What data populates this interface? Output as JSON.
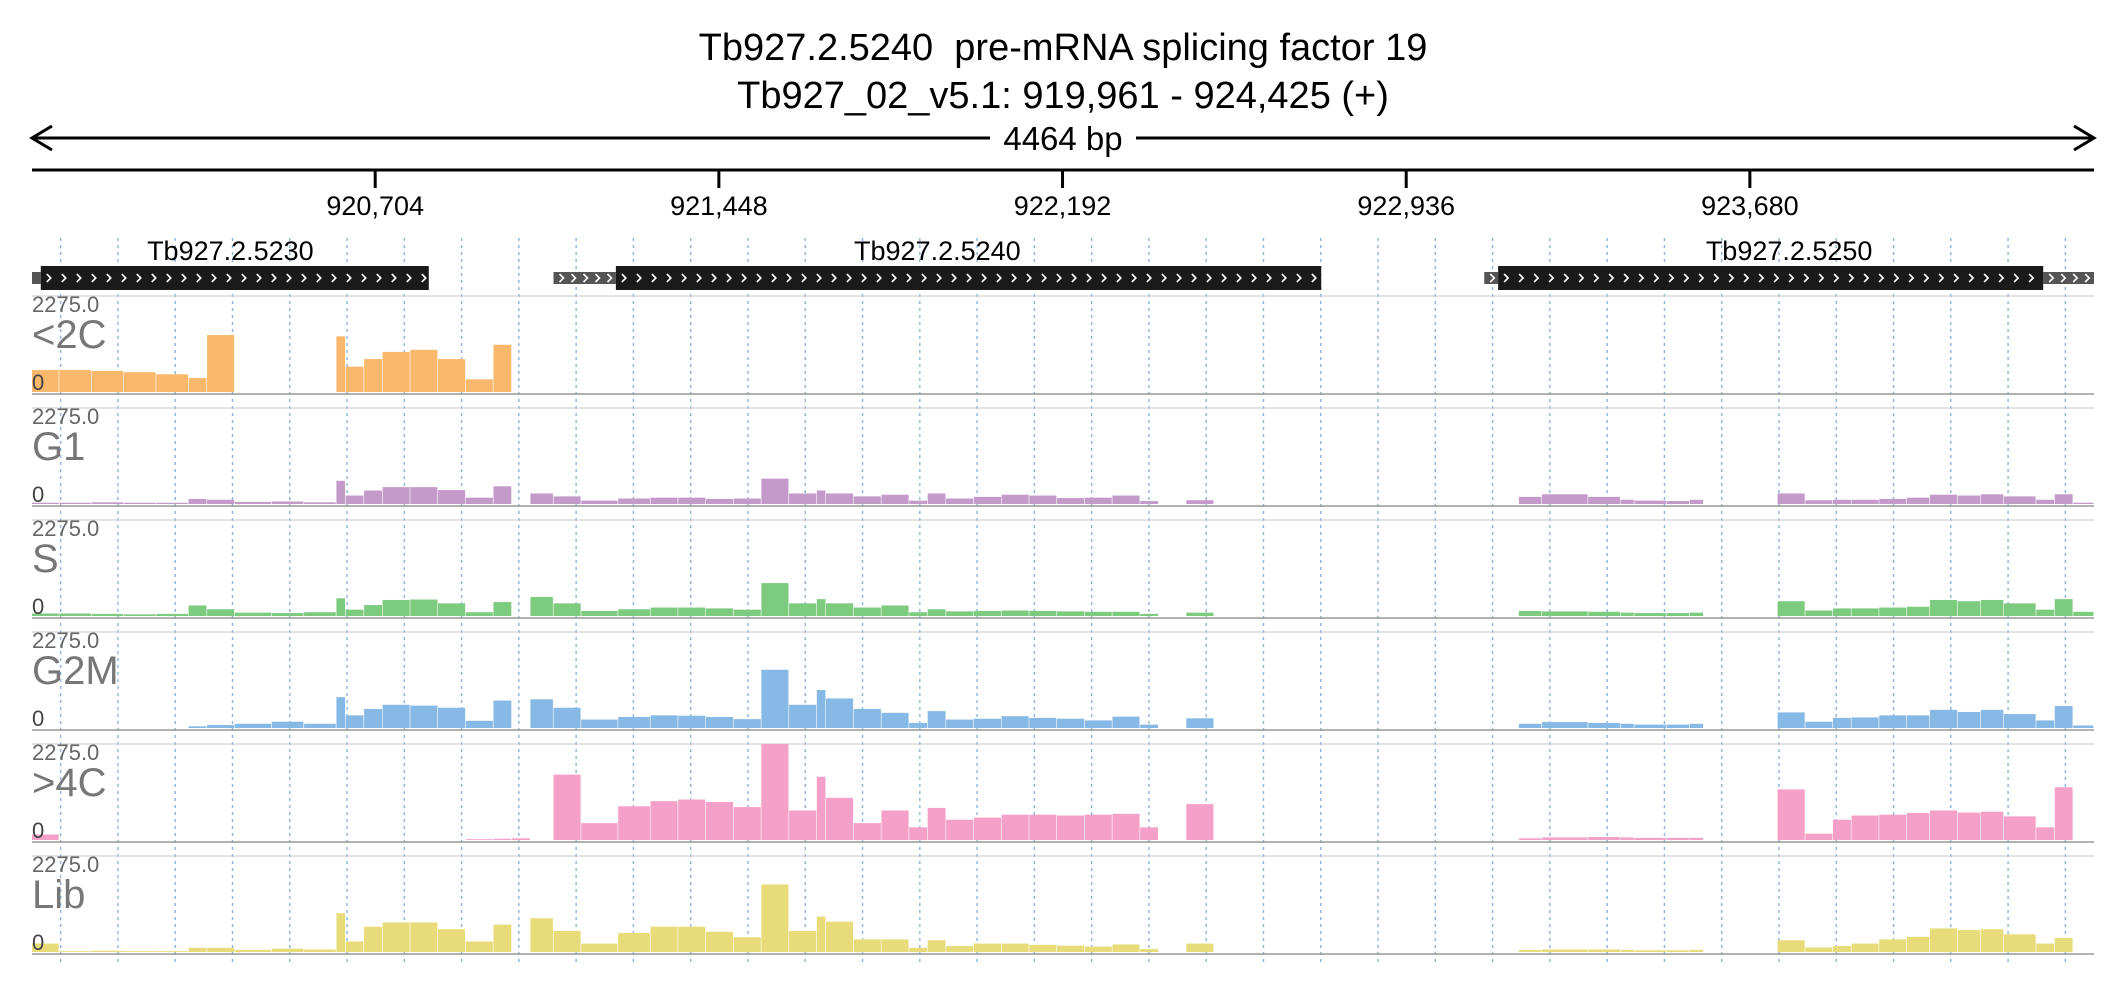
{
  "chart_data": {
    "type": "bar",
    "title": "Tb927.2.5240  pre-mRNA splicing factor 19",
    "subtitle": "Tb927_02_v5.1: 919,961 - 924,425 (+)",
    "span_label": "4464 bp",
    "xlim": [
      919961,
      924425
    ],
    "x_ticks": [
      920704,
      921448,
      922192,
      922936,
      923680
    ],
    "x_tick_labels": [
      "920,704",
      "921,448",
      "922,192",
      "922,936",
      "923,680"
    ],
    "genes": [
      {
        "name": "Tb927.2.5230",
        "utr5": [
          919961,
          919980
        ],
        "cds": [
          919980,
          920820
        ],
        "utr3": null
      },
      {
        "name": "Tb927.2.5240",
        "utr5": [
          921090,
          921225
        ],
        "cds": [
          921225,
          922752
        ],
        "utr3": null
      },
      {
        "name": "Tb927.2.5250",
        "utr5": [
          923105,
          923135
        ],
        "cds": [
          923135,
          924315
        ],
        "utr3": [
          924315,
          924425
        ]
      }
    ],
    "ylim": [
      0,
      2275.0
    ],
    "y_max_label": "2275.0",
    "y_min_label": "0",
    "grid": true,
    "bin_positions": [
      919961,
      920020,
      920090,
      920160,
      920230,
      920300,
      920340,
      920400,
      920480,
      920550,
      920620,
      920640,
      920680,
      920720,
      920780,
      920840,
      920900,
      920960,
      921000,
      921040,
      921090,
      921150,
      921230,
      921300,
      921360,
      921420,
      921480,
      921540,
      921600,
      921660,
      921680,
      921740,
      921800,
      921860,
      921900,
      921940,
      922000,
      922060,
      922120,
      922180,
      922240,
      922300,
      922360,
      922400,
      922460,
      922520,
      922560,
      922640,
      922690,
      922760,
      922850,
      922940,
      923030,
      923080,
      923120,
      923180,
      923230,
      923330,
      923400,
      923430,
      923500,
      923550,
      923580,
      923640,
      923700,
      923740,
      923800,
      923860,
      923900,
      923960,
      924020,
      924070,
      924130,
      924180,
      924230,
      924300,
      924340,
      924380
    ],
    "series": [
      {
        "name": "<2C",
        "color": "#f9b86b",
        "values": [
          520,
          520,
          500,
          470,
          420,
          330,
          1350,
          0,
          0,
          0,
          1320,
          600,
          780,
          950,
          1000,
          780,
          300,
          1120,
          0,
          0,
          0,
          0,
          0,
          0,
          0,
          0,
          0,
          0,
          0,
          0,
          0,
          0,
          0,
          0,
          0,
          0,
          0,
          0,
          0,
          0,
          0,
          0,
          0,
          0,
          0,
          0,
          0,
          0,
          0,
          0,
          0,
          0,
          0,
          0,
          0,
          0,
          0,
          0,
          0,
          0,
          0,
          0,
          0,
          0,
          0,
          0,
          0,
          0,
          0,
          0,
          0,
          0,
          0,
          0,
          0,
          0,
          0,
          0
        ]
      },
      {
        "name": "G1",
        "color": "#c49acb",
        "values": [
          30,
          30,
          40,
          30,
          30,
          120,
          100,
          50,
          60,
          40,
          550,
          200,
          320,
          400,
          400,
          330,
          150,
          420,
          0,
          250,
          180,
          80,
          130,
          150,
          150,
          120,
          130,
          600,
          250,
          320,
          250,
          180,
          220,
          80,
          250,
          130,
          170,
          220,
          200,
          140,
          150,
          200,
          70,
          0,
          90,
          0,
          0,
          0,
          0,
          0,
          0,
          0,
          0,
          0,
          0,
          170,
          230,
          170,
          100,
          80,
          70,
          100,
          0,
          0,
          0,
          250,
          90,
          100,
          100,
          120,
          150,
          220,
          200,
          230,
          180,
          100,
          230,
          30
        ]
      },
      {
        "name": "S",
        "color": "#7dcb7f",
        "values": [
          60,
          60,
          50,
          40,
          50,
          250,
          160,
          80,
          70,
          90,
          420,
          150,
          260,
          380,
          390,
          300,
          90,
          330,
          0,
          450,
          300,
          120,
          160,
          200,
          200,
          180,
          150,
          780,
          300,
          400,
          300,
          200,
          250,
          90,
          160,
          110,
          120,
          130,
          120,
          110,
          100,
          100,
          50,
          0,
          80,
          0,
          0,
          0,
          0,
          0,
          0,
          0,
          0,
          0,
          0,
          120,
          110,
          100,
          80,
          70,
          70,
          80,
          0,
          0,
          0,
          350,
          130,
          180,
          180,
          200,
          220,
          380,
          350,
          380,
          300,
          150,
          400,
          100
        ]
      },
      {
        "name": "G2M",
        "color": "#86b9e5",
        "values": [
          0,
          0,
          0,
          0,
          0,
          40,
          70,
          100,
          150,
          100,
          730,
          300,
          450,
          550,
          530,
          480,
          170,
          650,
          0,
          680,
          480,
          200,
          260,
          300,
          290,
          260,
          210,
          1380,
          550,
          900,
          700,
          450,
          360,
          120,
          400,
          200,
          220,
          280,
          240,
          220,
          180,
          270,
          80,
          0,
          230,
          0,
          0,
          0,
          0,
          0,
          0,
          0,
          0,
          0,
          0,
          100,
          140,
          120,
          100,
          80,
          80,
          100,
          0,
          0,
          0,
          370,
          150,
          240,
          250,
          300,
          300,
          430,
          380,
          430,
          330,
          180,
          520,
          60
        ]
      },
      {
        "name": ">4C",
        "color": "#f5a0c8",
        "values": [
          130,
          0,
          0,
          0,
          0,
          0,
          0,
          0,
          0,
          0,
          0,
          0,
          0,
          0,
          0,
          0,
          20,
          30,
          40,
          0,
          1550,
          400,
          800,
          920,
          960,
          900,
          780,
          2275,
          700,
          1500,
          1000,
          400,
          700,
          300,
          760,
          480,
          530,
          600,
          600,
          580,
          600,
          620,
          300,
          0,
          850,
          0,
          0,
          0,
          0,
          0,
          0,
          0,
          0,
          0,
          0,
          40,
          60,
          70,
          60,
          50,
          50,
          50,
          0,
          0,
          0,
          1200,
          150,
          480,
          580,
          600,
          640,
          700,
          650,
          670,
          560,
          300,
          1250,
          0
        ]
      },
      {
        "name": "Lib",
        "color": "#e8dc7a",
        "values": [
          200,
          20,
          30,
          20,
          20,
          100,
          100,
          50,
          80,
          60,
          920,
          250,
          600,
          700,
          700,
          540,
          250,
          650,
          0,
          800,
          500,
          200,
          450,
          600,
          600,
          480,
          350,
          1600,
          500,
          840,
          720,
          300,
          300,
          100,
          280,
          140,
          200,
          200,
          170,
          150,
          130,
          180,
          70,
          0,
          200,
          0,
          0,
          0,
          0,
          0,
          0,
          0,
          0,
          0,
          0,
          50,
          60,
          60,
          50,
          40,
          40,
          50,
          0,
          0,
          0,
          280,
          110,
          140,
          200,
          300,
          360,
          560,
          520,
          540,
          420,
          200,
          330,
          0
        ]
      }
    ]
  }
}
